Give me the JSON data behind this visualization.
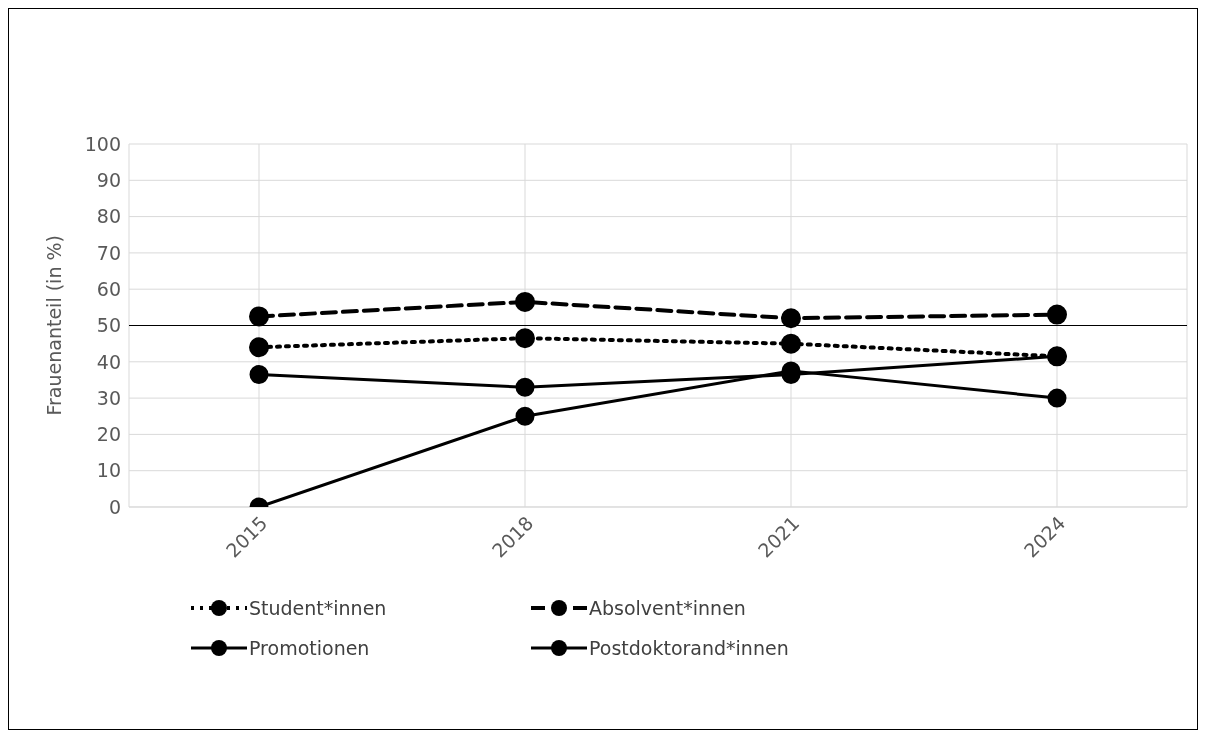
{
  "chart_data": {
    "type": "line",
    "ylabel": "Frauenanteil (in %)",
    "categories": [
      "2015",
      "2018",
      "2021",
      "2024"
    ],
    "series": [
      {
        "name": "Student*innen",
        "color": "#000000",
        "line_style": "dotted",
        "values": [
          44,
          46.5,
          45,
          41.5
        ]
      },
      {
        "name": "Absolvent*innen",
        "color": "#000000",
        "line_style": "dashed",
        "values": [
          52.5,
          56.5,
          52,
          53
        ]
      },
      {
        "name": "Promotionen",
        "color": "#000000",
        "line_style": "solid",
        "values": [
          36.5,
          33,
          36.5,
          41.5
        ]
      },
      {
        "name": "Postdoktorand*innen",
        "color": "#000000",
        "line_style": "solid",
        "values": [
          0,
          25,
          37.5,
          30
        ]
      }
    ],
    "ylim": [
      0,
      100
    ],
    "yticks": [
      0,
      10,
      20,
      30,
      40,
      50,
      60,
      70,
      80,
      90,
      100
    ],
    "grid": true,
    "marker": "circle",
    "legend": "bottom",
    "ref_lines": [
      {
        "axis": "y",
        "value": 50,
        "color": "#000000"
      }
    ]
  }
}
